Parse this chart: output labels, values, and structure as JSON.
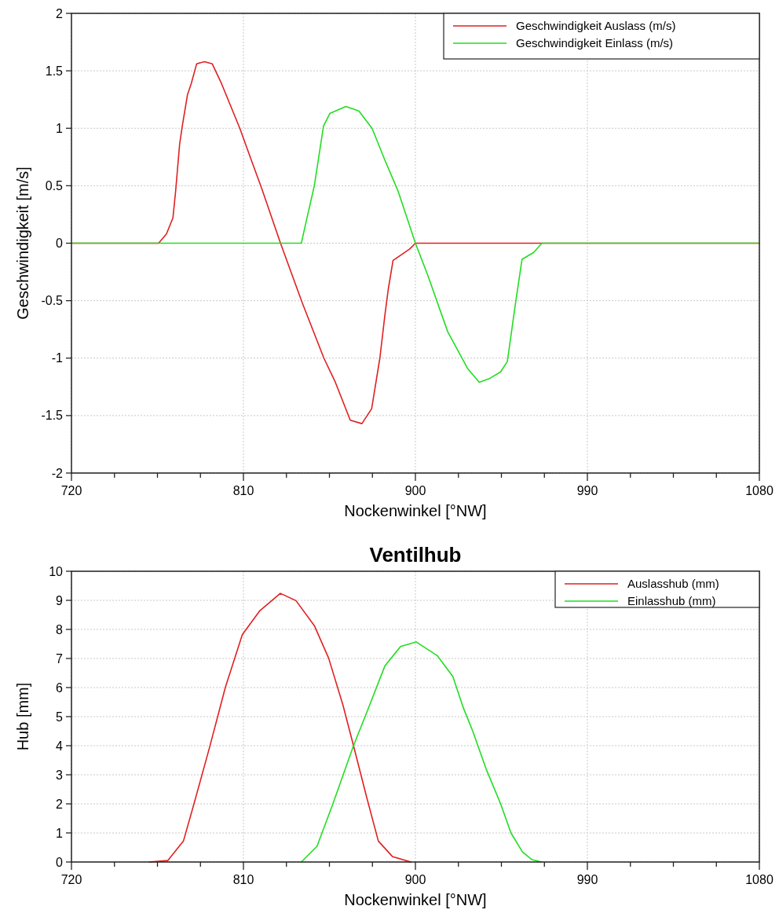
{
  "chart_data": [
    {
      "type": "line",
      "xlabel": "Nockenwinkel [°NW]",
      "ylabel": "Geschwindigkeit [m/s]",
      "xlim": [
        720,
        1080
      ],
      "xticks": [
        720,
        {
          "value": 742.5,
          "label": null
        },
        {
          "value": 765,
          "label": null
        },
        {
          "value": 787.5,
          "label": null
        },
        810,
        {
          "value": 832.5,
          "label": null
        },
        {
          "value": 855,
          "label": null
        },
        {
          "value": 877.5,
          "label": null
        },
        900,
        {
          "value": 922.5,
          "label": null
        },
        {
          "value": 945,
          "label": null
        },
        {
          "value": 967.5,
          "label": null
        },
        990,
        {
          "value": 1012.5,
          "label": null
        },
        {
          "value": 1035,
          "label": null
        },
        {
          "value": 1057.5,
          "label": null
        },
        1080
      ],
      "ylim": [
        -2,
        2
      ],
      "yticks": [
        -2,
        -1.5,
        -1,
        -0.5,
        0,
        0.5,
        1,
        1.5,
        2
      ],
      "grid": true,
      "legend": "top right",
      "marker": "none",
      "line_style": "solid",
      "series": [
        {
          "name": "Geschwindigkeit Auslass (m/s)",
          "color": "#e02020",
          "x": [
            720,
            765.6,
            769.7,
            773.1,
            774.5,
            776.6,
            778,
            780.7,
            782.7,
            785.5,
            789.6,
            793.7,
            798.5,
            808.1,
            814.2,
            819.7,
            829.4,
            840.8,
            852.1,
            858.1,
            865.9,
            872,
            877.1,
            881.4,
            884,
            885.8,
            888.3,
            892.7,
            897,
            900,
            1080
          ],
          "values": [
            0,
            0,
            0.08,
            0.22,
            0.45,
            0.86,
            1.02,
            1.29,
            1.39,
            1.56,
            1.58,
            1.56,
            1.39,
            1,
            0.72,
            0.47,
            0,
            -0.52,
            -1,
            -1.21,
            -1.54,
            -1.57,
            -1.44,
            -1,
            -0.63,
            -0.4,
            -0.15,
            -0.1,
            -0.05,
            0,
            0
          ]
        },
        {
          "name": "Geschwindigkeit Einlass (m/s)",
          "color": "#22dd22",
          "x": [
            720,
            840.3,
            842.3,
            847.1,
            851.9,
            855.3,
            863.6,
            870.4,
            877.3,
            884.1,
            891,
            900,
            906.5,
            916.9,
            927.3,
            933.4,
            938.5,
            944.6,
            948.1,
            952.4,
            955.8,
            961.9,
            966.2,
            1080
          ],
          "values": [
            0,
            0,
            0.15,
            0.5,
            1.02,
            1.13,
            1.19,
            1.15,
            1,
            0.72,
            0.45,
            0,
            -0.28,
            -0.77,
            -1.09,
            -1.21,
            -1.18,
            -1.12,
            -1.03,
            -0.52,
            -0.14,
            -0.08,
            0,
            0
          ]
        }
      ]
    },
    {
      "type": "line",
      "title": "Ventilhub",
      "xlabel": "Nockenwinkel [°NW]",
      "ylabel": "Hub [mm]",
      "xlim": [
        720,
        1080
      ],
      "xticks": [
        720,
        {
          "value": 742.5,
          "label": null
        },
        {
          "value": 765,
          "label": null
        },
        {
          "value": 787.5,
          "label": null
        },
        810,
        {
          "value": 832.5,
          "label": null
        },
        {
          "value": 855,
          "label": null
        },
        {
          "value": 877.5,
          "label": null
        },
        900,
        {
          "value": 922.5,
          "label": null
        },
        {
          "value": 945,
          "label": null
        },
        {
          "value": 967.5,
          "label": null
        },
        990,
        {
          "value": 1012.5,
          "label": null
        },
        {
          "value": 1035,
          "label": null
        },
        {
          "value": 1057.5,
          "label": null
        },
        1080
      ],
      "ylim": [
        0,
        10
      ],
      "yticks": [
        0,
        1,
        2,
        3,
        4,
        5,
        6,
        7,
        8,
        9,
        10
      ],
      "grid": true,
      "legend": "top right",
      "marker": "none",
      "line_style": "solid",
      "series": [
        {
          "name": "Auslasshub (mm)",
          "color": "#e02020",
          "x": [
            760.8,
            770.4,
            778.6,
            784.4,
            792.3,
            800.6,
            809.4,
            818.4,
            829.3,
            837.5,
            847.1,
            854.6,
            862.1,
            867.6,
            874.4,
            880.6,
            888.1,
            897.7
          ],
          "values": [
            0,
            0.05,
            0.72,
            2.07,
            3.95,
            6.02,
            7.82,
            8.63,
            9.24,
            8.99,
            8.13,
            7.01,
            5.39,
            4,
            2.25,
            0.72,
            0.18,
            0
          ]
        },
        {
          "name": "Einlasshub (mm)",
          "color": "#22dd22",
          "x": [
            840.3,
            848.5,
            856.7,
            867.6,
            874.4,
            884,
            892.2,
            900.4,
            911.4,
            919.6,
            925.1,
            930,
            937,
            944.6,
            950,
            956,
            961,
            966
          ],
          "values": [
            0,
            0.54,
            1.98,
            4,
            5.12,
            6.74,
            7.41,
            7.57,
            7.1,
            6.38,
            5.3,
            4.5,
            3.2,
            2,
            1,
            0.35,
            0.08,
            0
          ]
        }
      ]
    }
  ]
}
